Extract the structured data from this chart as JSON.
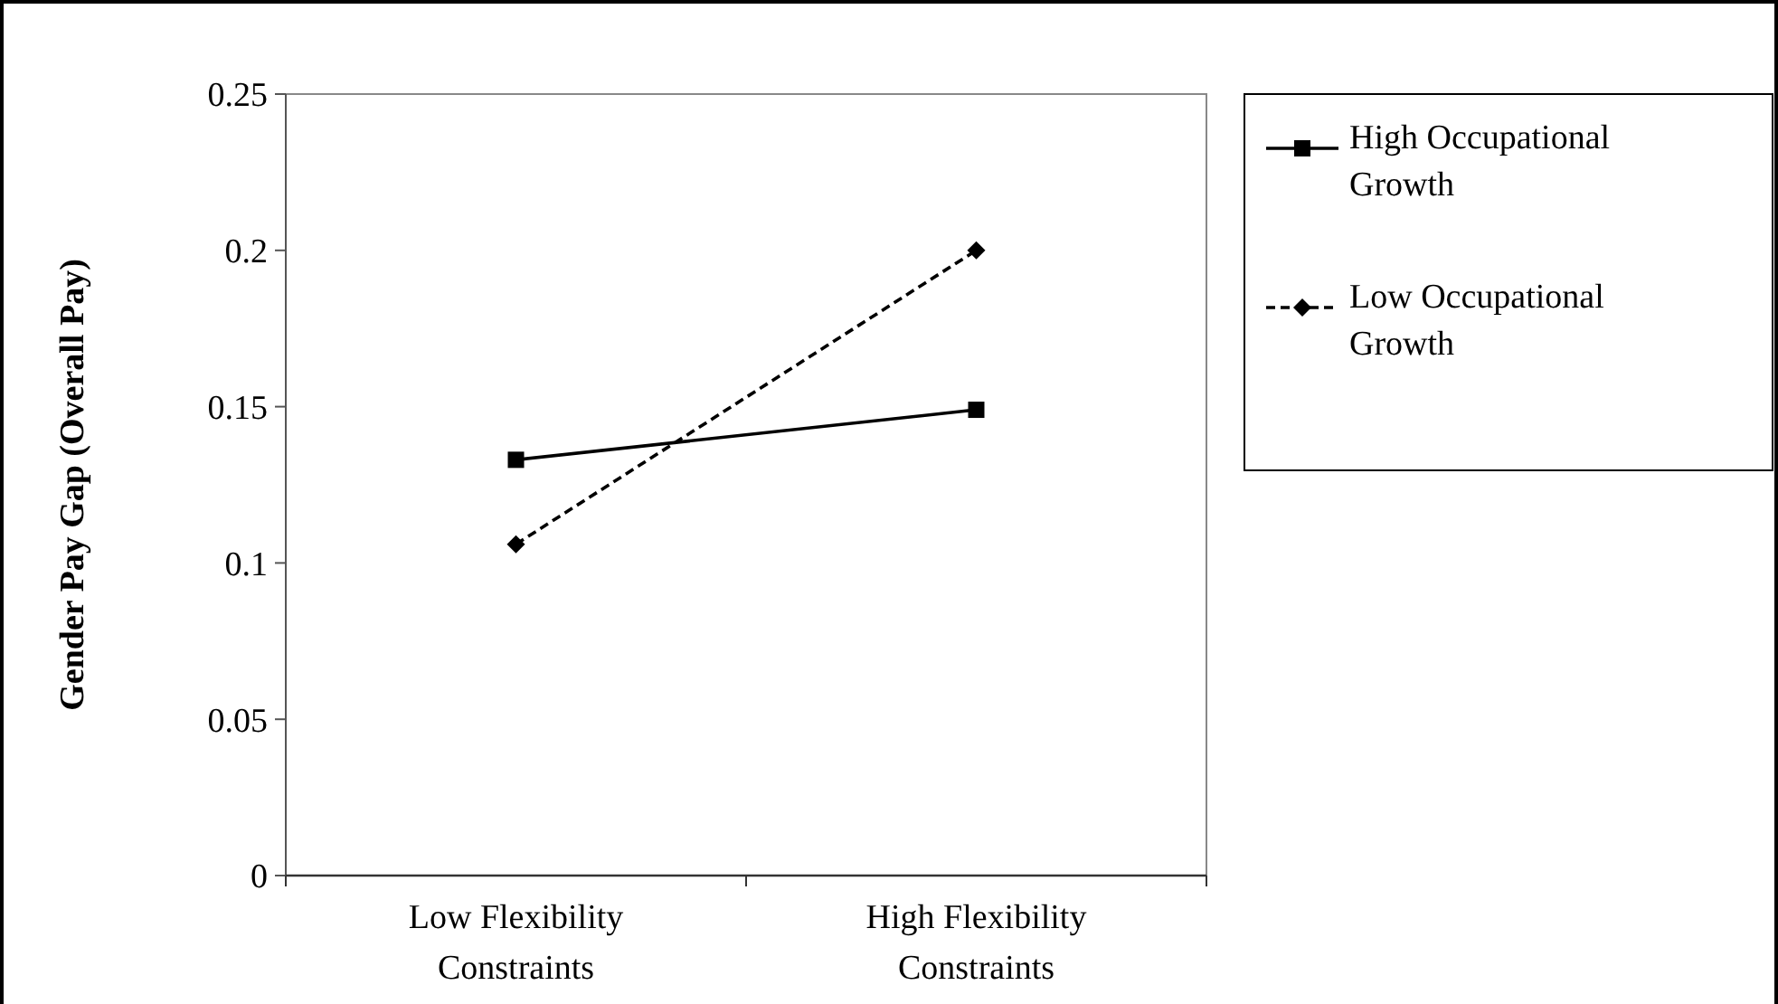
{
  "chart_data": {
    "type": "line",
    "ylabel": "Gender Pay Gap (Overall Pay)",
    "categories": [
      "Low Flexibility Constraints",
      "High Flexibility Constraints"
    ],
    "series": [
      {
        "name": "High Occupational Growth",
        "color": "#000000",
        "values": [
          0.133,
          0.149
        ],
        "marker": "square",
        "line_style": "solid"
      },
      {
        "name": "Low Occupational Growth",
        "color": "#000000",
        "values": [
          0.106,
          0.2
        ],
        "marker": "diamond",
        "line_style": "dashed"
      }
    ],
    "ylim": [
      0,
      0.25
    ],
    "yticks": [
      0,
      0.05,
      0.1,
      0.15,
      0.2,
      0.25
    ],
    "grid": false,
    "legend": "right"
  }
}
